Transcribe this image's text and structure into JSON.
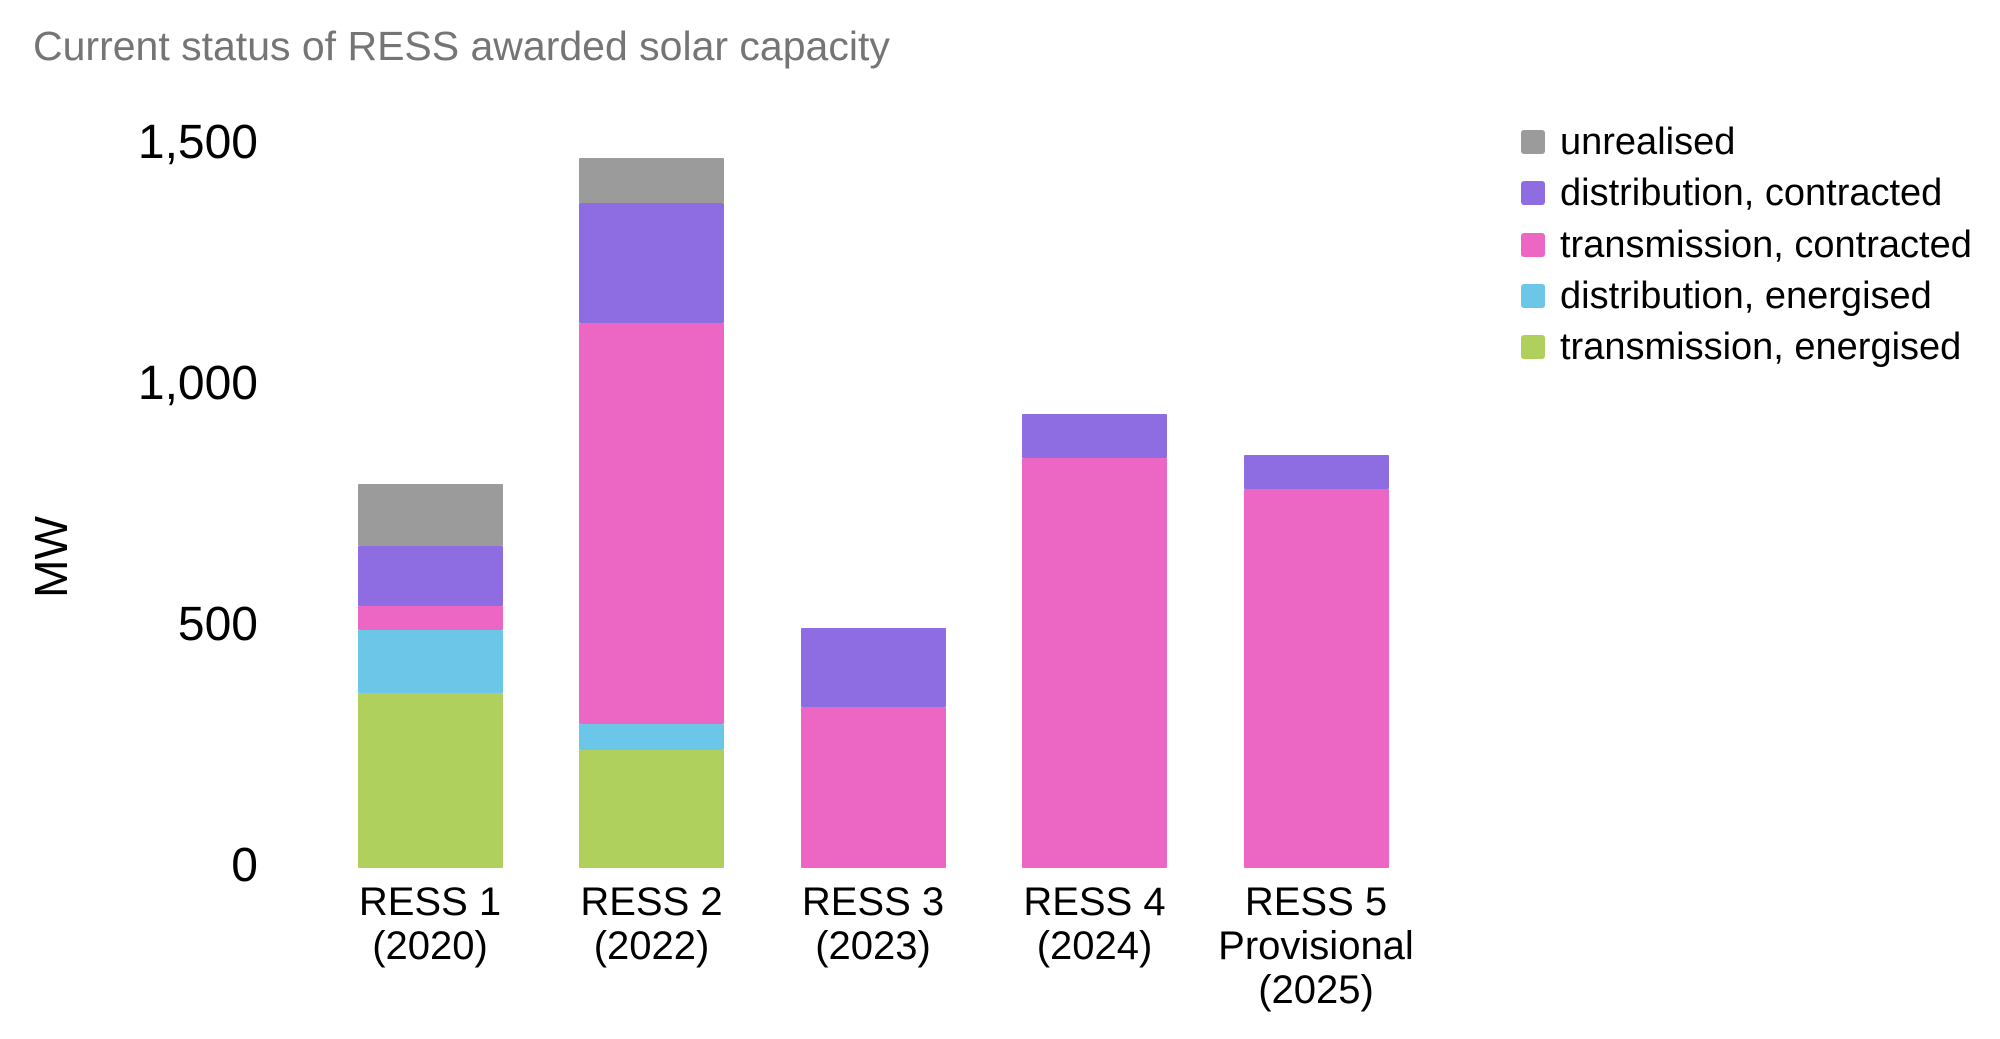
{
  "title": "Current status of RESS awarded solar capacity",
  "colors": {
    "background": "#ffffff",
    "title_text": "#757575",
    "axis_text": "#000000",
    "unrealised": "#9b9b9b",
    "distribution_contracted": "#8e6ce2",
    "transmission_contracted": "#ec67c3",
    "distribution_energised": "#6cc6e8",
    "transmission_energised": "#b0d05e"
  },
  "chart_data": {
    "type": "bar",
    "stacked": true,
    "title": "Current status of RESS awarded solar capacity",
    "xlabel": "",
    "ylabel": "MW",
    "ylim": [
      0,
      1500
    ],
    "grid": false,
    "legend_position": "right",
    "yticks": [
      {
        "value": 0,
        "label": "0"
      },
      {
        "value": 500,
        "label": "500"
      },
      {
        "value": 1000,
        "label": "1,000"
      },
      {
        "value": 1500,
        "label": "1,500"
      }
    ],
    "categories": [
      "RESS 1\n(2020)",
      "RESS 2\n(2022)",
      "RESS 3\n(2023)",
      "RESS 4\n(2024)",
      "RESS 5\nProvisional\n(2025)"
    ],
    "series": [
      {
        "name": "unrealised",
        "color": "#9b9b9b",
        "values": [
          130,
          95,
          0,
          0,
          0
        ]
      },
      {
        "name": "distribution, contracted",
        "color": "#8e6ce2",
        "values": [
          125,
          250,
          165,
          90,
          70
        ]
      },
      {
        "name": "transmission, contracted",
        "color": "#ec67c3",
        "values": [
          50,
          835,
          335,
          855,
          790
        ]
      },
      {
        "name": "distribution, energised",
        "color": "#6cc6e8",
        "values": [
          130,
          55,
          0,
          0,
          0
        ]
      },
      {
        "name": "transmission, energised",
        "color": "#b0d05e",
        "values": [
          365,
          245,
          0,
          0,
          0
        ]
      }
    ],
    "stack_order_bottom_to_top": [
      "transmission, energised",
      "distribution, energised",
      "transmission, contracted",
      "distribution, contracted",
      "unrealised"
    ],
    "totals_mw": [
      800,
      1480,
      500,
      945,
      860
    ]
  }
}
